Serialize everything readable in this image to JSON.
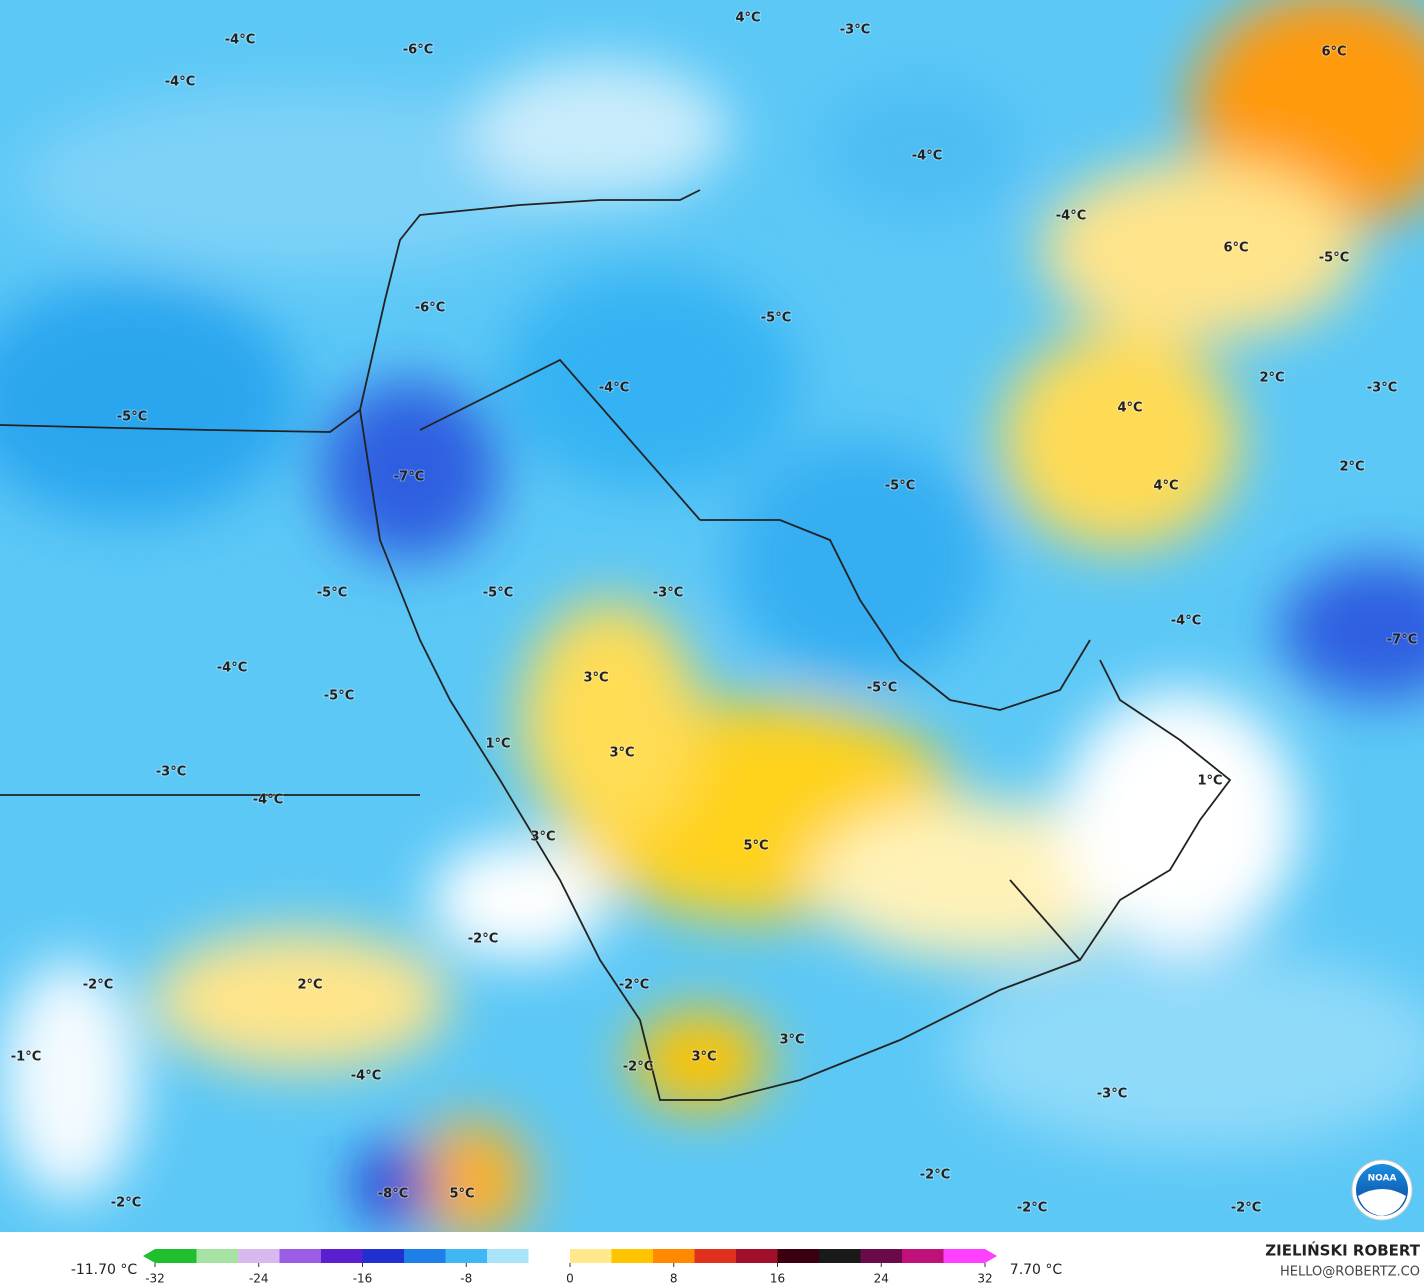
{
  "map_labels": [
    "-4°C",
    "-6°C",
    "-4°C",
    "4°C",
    "-3°C",
    "6°C",
    "-4°C",
    "-4°C",
    "6°C",
    "-5°C",
    "-6°C",
    "-5°C",
    "-4°C",
    "-5°C",
    "4°C",
    "2°C",
    "-3°C",
    "-7°C",
    "-5°C",
    "4°C",
    "2°C",
    "-5°C",
    "-5°C",
    "-3°C",
    "-4°C",
    "-7°C",
    "-4°C",
    "3°C",
    "-5°C",
    "-5°C",
    "1°C",
    "3°C",
    "1°C",
    "-3°C",
    "-4°C",
    "3°C",
    "5°C",
    "-2°C",
    "2°C",
    "-2°C",
    "-2°C",
    "-1°C",
    "-4°C",
    "3°C",
    "3°C",
    "-2°C",
    "-3°C",
    "-8°C",
    "5°C",
    "-2°C",
    "-2°C",
    "-2°C",
    "-2°C"
  ],
  "colorbar": {
    "min_label": "-11.70 °C",
    "max_label": "7.70 °C",
    "range": [
      -32,
      32
    ],
    "ticks": [
      -32,
      -24,
      -16,
      -8,
      0,
      8,
      16,
      24,
      32
    ],
    "colors": [
      "#1fbf2f",
      "#a6e3a3",
      "#d7b9f0",
      "#9b5de5",
      "#5a1fd0",
      "#1f2fd0",
      "#1f7fe8",
      "#3fb7f5",
      "#a9e4fb",
      "#ffffff",
      "#ffe98a",
      "#ffc400",
      "#ff8a00",
      "#e0301e",
      "#a0102a",
      "#3a0010",
      "#1a1a1a",
      "#6a0a4a",
      "#c0107a",
      "#ff40ff"
    ]
  },
  "author": "ZIELIŃSKI ROBERT",
  "email": "HELLO@ROBERTZ.CO",
  "logo_text": "NOAA"
}
